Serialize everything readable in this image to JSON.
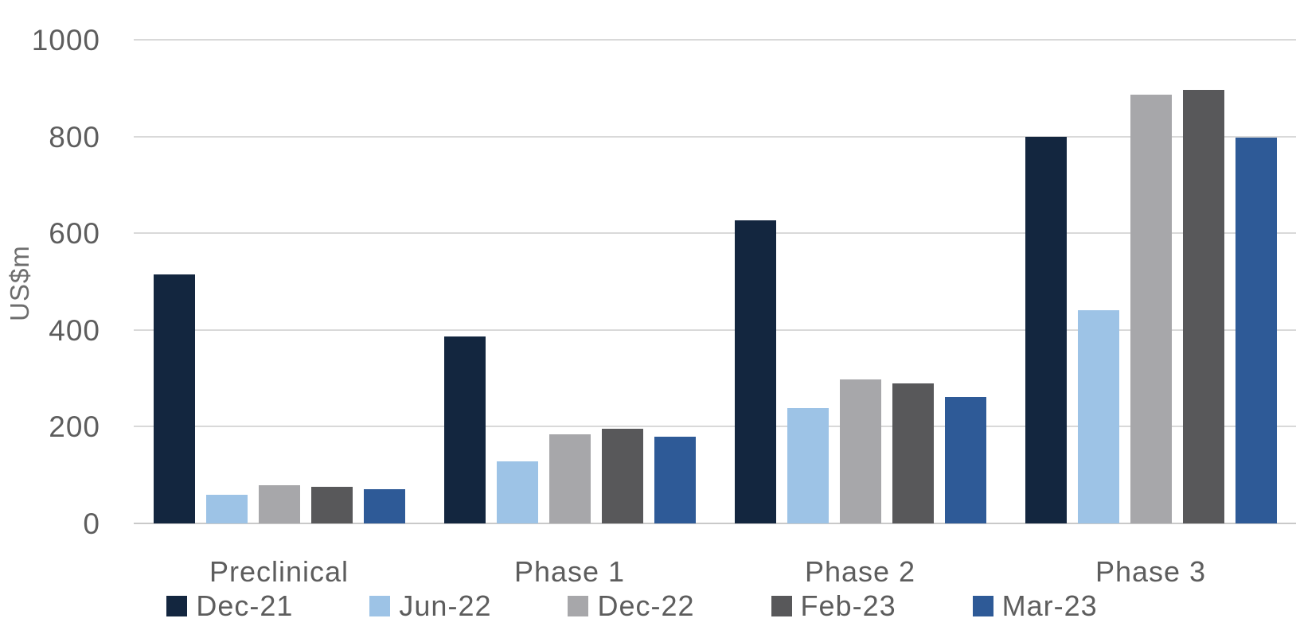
{
  "chart_data": {
    "type": "bar",
    "title": "",
    "xlabel": "",
    "ylabel": "US$m",
    "categories": [
      "Preclinical",
      "Phase 1",
      "Phase 2",
      "Phase 3"
    ],
    "series": [
      {
        "name": "Dec-21",
        "color": "#13263F",
        "values": [
          515,
          387,
          627,
          800
        ]
      },
      {
        "name": "Jun-22",
        "color": "#9DC3E6",
        "values": [
          60,
          128,
          238,
          441
        ]
      },
      {
        "name": "Dec-22",
        "color": "#A7A7AA",
        "values": [
          79,
          185,
          297,
          886
        ]
      },
      {
        "name": "Feb-23",
        "color": "#58585A",
        "values": [
          75,
          196,
          289,
          896
        ]
      },
      {
        "name": "Mar-23",
        "color": "#2E5A97",
        "values": [
          70,
          180,
          262,
          797
        ]
      }
    ],
    "ylim": [
      0,
      1000
    ],
    "yticks": [
      0,
      200,
      400,
      600,
      800,
      1000
    ],
    "grid": true,
    "legend_position": "bottom"
  },
  "colors": {
    "background": "#FFFFFF",
    "gridline": "#D9D9D9",
    "axis_line": "#C9C9C9",
    "axis_text": "#5D5D5D"
  }
}
